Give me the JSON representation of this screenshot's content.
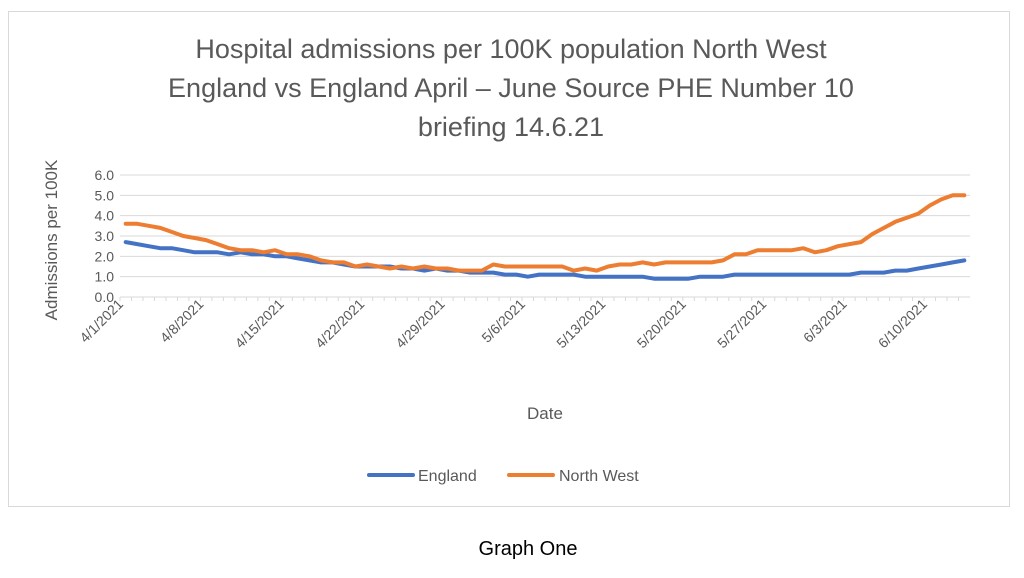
{
  "caption": "Graph One",
  "colors": {
    "england": "#4472C4",
    "north_west": "#ED7D31",
    "grid": "#d9d9d9",
    "text": "#595959"
  },
  "chart_data": {
    "type": "line",
    "title_lines": [
      "Hospital admissions per 100K population North West",
      "England vs England April – June Source PHE Number 10",
      "briefing 14.6.21"
    ],
    "xlabel": "Date",
    "ylabel": "Admissions per 100K",
    "ylim": [
      0,
      6
    ],
    "yticks": [
      "0.0",
      "1.0",
      "2.0",
      "3.0",
      "4.0",
      "5.0",
      "6.0"
    ],
    "x_tick_labels": [
      "4/1/2021",
      "4/8/2021",
      "4/15/2021",
      "4/22/2021",
      "4/29/2021",
      "5/6/2021",
      "5/13/2021",
      "5/20/2021",
      "5/27/2021",
      "6/3/2021",
      "6/10/2021"
    ],
    "x": [
      "4/1/2021",
      "4/2/2021",
      "4/3/2021",
      "4/4/2021",
      "4/5/2021",
      "4/6/2021",
      "4/7/2021",
      "4/8/2021",
      "4/9/2021",
      "4/10/2021",
      "4/11/2021",
      "4/12/2021",
      "4/13/2021",
      "4/14/2021",
      "4/15/2021",
      "4/16/2021",
      "4/17/2021",
      "4/18/2021",
      "4/19/2021",
      "4/20/2021",
      "4/21/2021",
      "4/22/2021",
      "4/23/2021",
      "4/24/2021",
      "4/25/2021",
      "4/26/2021",
      "4/27/2021",
      "4/28/2021",
      "4/29/2021",
      "4/30/2021",
      "5/1/2021",
      "5/2/2021",
      "5/3/2021",
      "5/4/2021",
      "5/5/2021",
      "5/6/2021",
      "5/7/2021",
      "5/8/2021",
      "5/9/2021",
      "5/10/2021",
      "5/11/2021",
      "5/12/2021",
      "5/13/2021",
      "5/14/2021",
      "5/15/2021",
      "5/16/2021",
      "5/17/2021",
      "5/18/2021",
      "5/19/2021",
      "5/20/2021",
      "5/21/2021",
      "5/22/2021",
      "5/23/2021",
      "5/24/2021",
      "5/25/2021",
      "5/26/2021",
      "5/27/2021",
      "5/28/2021",
      "5/29/2021",
      "5/30/2021",
      "5/31/2021",
      "6/1/2021",
      "6/2/2021",
      "6/3/2021",
      "6/4/2021",
      "6/5/2021",
      "6/6/2021",
      "6/7/2021",
      "6/8/2021",
      "6/9/2021",
      "6/10/2021",
      "6/11/2021",
      "6/12/2021",
      "6/13/2021"
    ],
    "series": [
      {
        "name": "England",
        "values": [
          2.7,
          2.6,
          2.5,
          2.4,
          2.4,
          2.3,
          2.2,
          2.2,
          2.2,
          2.1,
          2.2,
          2.1,
          2.1,
          2.0,
          2.0,
          1.9,
          1.8,
          1.7,
          1.7,
          1.6,
          1.5,
          1.5,
          1.5,
          1.5,
          1.4,
          1.4,
          1.3,
          1.4,
          1.3,
          1.3,
          1.2,
          1.2,
          1.2,
          1.1,
          1.1,
          1.0,
          1.1,
          1.1,
          1.1,
          1.1,
          1.0,
          1.0,
          1.0,
          1.0,
          1.0,
          1.0,
          0.9,
          0.9,
          0.9,
          0.9,
          1.0,
          1.0,
          1.0,
          1.1,
          1.1,
          1.1,
          1.1,
          1.1,
          1.1,
          1.1,
          1.1,
          1.1,
          1.1,
          1.1,
          1.2,
          1.2,
          1.2,
          1.3,
          1.3,
          1.4,
          1.5,
          1.6,
          1.7,
          1.8
        ]
      },
      {
        "name": "North West",
        "values": [
          3.6,
          3.6,
          3.5,
          3.4,
          3.2,
          3.0,
          2.9,
          2.8,
          2.6,
          2.4,
          2.3,
          2.3,
          2.2,
          2.3,
          2.1,
          2.1,
          2.0,
          1.8,
          1.7,
          1.7,
          1.5,
          1.6,
          1.5,
          1.4,
          1.5,
          1.4,
          1.5,
          1.4,
          1.4,
          1.3,
          1.3,
          1.3,
          1.6,
          1.5,
          1.5,
          1.5,
          1.5,
          1.5,
          1.5,
          1.3,
          1.4,
          1.3,
          1.5,
          1.6,
          1.6,
          1.7,
          1.6,
          1.7,
          1.7,
          1.7,
          1.7,
          1.7,
          1.8,
          2.1,
          2.1,
          2.3,
          2.3,
          2.3,
          2.3,
          2.4,
          2.2,
          2.3,
          2.5,
          2.6,
          2.7,
          3.1,
          3.4,
          3.7,
          3.9,
          4.1,
          4.5,
          4.8,
          5.0,
          5.0
        ]
      }
    ],
    "grid": true,
    "legend_position": "bottom"
  }
}
